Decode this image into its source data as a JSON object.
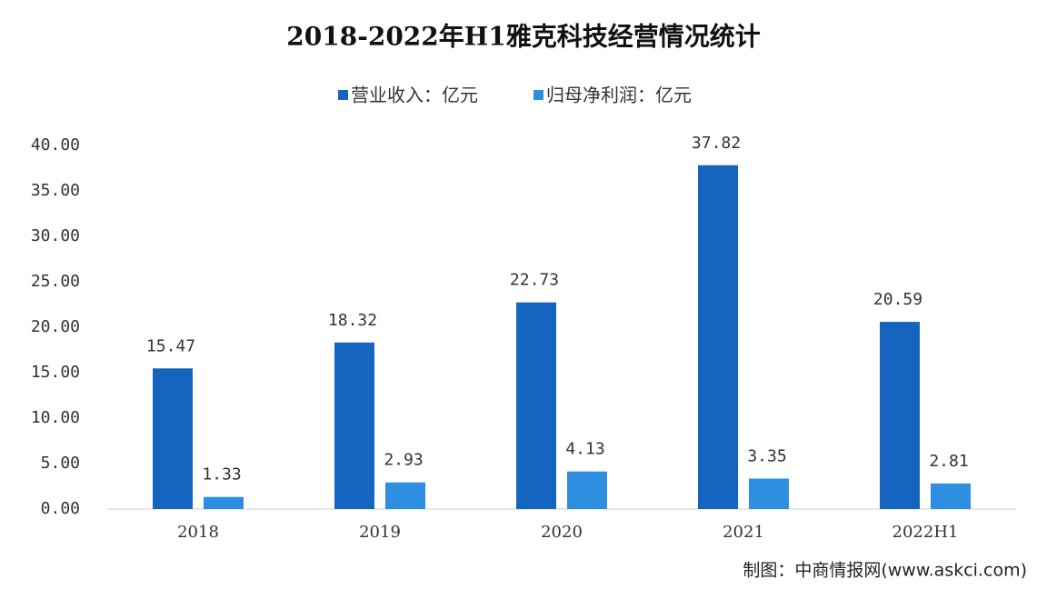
{
  "chart_data": {
    "type": "bar",
    "title": "2018-2022年H1雅克科技经营情况统计",
    "categories": [
      "2018",
      "2019",
      "2020",
      "2021",
      "2022H1"
    ],
    "series": [
      {
        "name": "营业收入：亿元",
        "color": "#1565c0",
        "values": [
          15.47,
          18.32,
          22.73,
          37.82,
          20.59
        ]
      },
      {
        "name": "归母净利润：亿元",
        "color": "#2e8fe0",
        "values": [
          1.33,
          2.93,
          4.13,
          3.35,
          2.81
        ]
      }
    ],
    "ylim": [
      0,
      40
    ],
    "yticks": [
      {
        "value": 0,
        "label": "0.00"
      },
      {
        "value": 5,
        "label": "5.00"
      },
      {
        "value": 10,
        "label": "10.00"
      },
      {
        "value": 15,
        "label": "15.00"
      },
      {
        "value": 20,
        "label": "20.00"
      },
      {
        "value": 25,
        "label": "25.00"
      },
      {
        "value": 30,
        "label": "30.00"
      },
      {
        "value": 35,
        "label": "35.00"
      },
      {
        "value": 40,
        "label": "40.00"
      }
    ],
    "grid": false,
    "legend": "top",
    "source": "制图：中商情报网(www.askci.com)"
  }
}
